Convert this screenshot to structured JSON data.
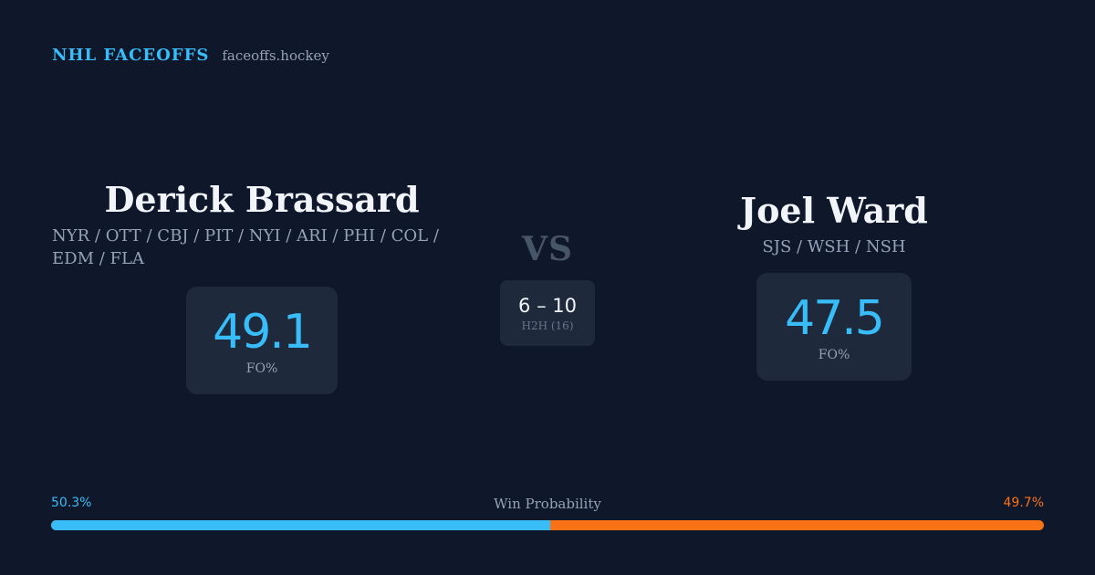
{
  "brand": {
    "name": "NHL FACEOFFS",
    "site": "faceoffs.hockey"
  },
  "player1": {
    "name": "Derick Brassard",
    "teams": "NYR / OTT / CBJ / PIT / NYI / ARI / PHI / COL / EDM / FLA",
    "fo_pct": "49.1",
    "fo_label": "FO%"
  },
  "player2": {
    "name": "Joel Ward",
    "teams": "SJS / WSH / NSH",
    "fo_pct": "47.5",
    "fo_label": "FO%"
  },
  "vs_label": "VS",
  "h2h": {
    "score": "6 – 10",
    "label": "H2H (16)"
  },
  "win_probability": {
    "label": "Win Probability",
    "left_text": "50.3%",
    "right_text": "49.7%",
    "left_value": 50.3,
    "left_color": "#38bdf8",
    "right_color": "#f97316"
  }
}
